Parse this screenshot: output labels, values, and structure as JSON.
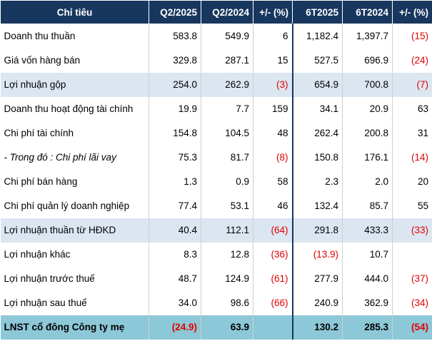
{
  "columns": [
    "Chỉ tiêu",
    "Q2/2025",
    "Q2/2024",
    "+/- (%)",
    "6T2025",
    "6T2024",
    "+/- (%)"
  ],
  "rows": [
    {
      "label": "Doanh thu thuần",
      "style": "",
      "cells": [
        {
          "v": "583.8"
        },
        {
          "v": "549.9"
        },
        {
          "v": "6"
        },
        {
          "v": "1,182.4"
        },
        {
          "v": "1,397.7"
        },
        {
          "v": "(15)",
          "neg": true
        }
      ]
    },
    {
      "label": "Giá vốn hàng bán",
      "style": "",
      "cells": [
        {
          "v": "329.8"
        },
        {
          "v": "287.1"
        },
        {
          "v": "15"
        },
        {
          "v": "527.5"
        },
        {
          "v": "696.9"
        },
        {
          "v": "(24)",
          "neg": true
        }
      ]
    },
    {
      "label": "Lợi nhuận gộp",
      "style": "shaded",
      "cells": [
        {
          "v": "254.0"
        },
        {
          "v": "262.9"
        },
        {
          "v": "(3)",
          "neg": true
        },
        {
          "v": "654.9"
        },
        {
          "v": "700.8"
        },
        {
          "v": "(7)",
          "neg": true
        }
      ]
    },
    {
      "label": "Doanh thu hoạt động tài chính",
      "style": "",
      "cells": [
        {
          "v": "19.9"
        },
        {
          "v": "7.7"
        },
        {
          "v": "159"
        },
        {
          "v": "34.1"
        },
        {
          "v": "20.9"
        },
        {
          "v": "63"
        }
      ]
    },
    {
      "label": "Chi phí tài chính",
      "style": "",
      "cells": [
        {
          "v": "154.8"
        },
        {
          "v": "104.5"
        },
        {
          "v": "48"
        },
        {
          "v": "262.4"
        },
        {
          "v": "200.8"
        },
        {
          "v": "31"
        }
      ]
    },
    {
      "label": "- Trong đó : Chi phí lãi vay",
      "style": "italic",
      "cells": [
        {
          "v": "75.3"
        },
        {
          "v": "81.7"
        },
        {
          "v": "(8)",
          "neg": true
        },
        {
          "v": "150.8"
        },
        {
          "v": "176.1"
        },
        {
          "v": "(14)",
          "neg": true
        }
      ]
    },
    {
      "label": "Chi phí bán hàng",
      "style": "",
      "cells": [
        {
          "v": "1.3"
        },
        {
          "v": "0.9"
        },
        {
          "v": "58"
        },
        {
          "v": "2.3"
        },
        {
          "v": "2.0"
        },
        {
          "v": "20"
        }
      ]
    },
    {
      "label": "Chi phí quản lý doanh nghiệp",
      "style": "",
      "cells": [
        {
          "v": "77.4"
        },
        {
          "v": "53.1"
        },
        {
          "v": "46"
        },
        {
          "v": "132.4"
        },
        {
          "v": "85.7"
        },
        {
          "v": "55"
        }
      ]
    },
    {
      "label": "Lợi nhuận thuần từ HĐKD",
      "style": "shaded",
      "cells": [
        {
          "v": "40.4"
        },
        {
          "v": "112.1"
        },
        {
          "v": "(64)",
          "neg": true
        },
        {
          "v": "291.8"
        },
        {
          "v": "433.3"
        },
        {
          "v": "(33)",
          "neg": true
        }
      ]
    },
    {
      "label": "Lợi nhuận khác",
      "style": "",
      "cells": [
        {
          "v": "8.3"
        },
        {
          "v": "12.8"
        },
        {
          "v": "(36)",
          "neg": true
        },
        {
          "v": "(13.9)",
          "neg": true
        },
        {
          "v": "10.7"
        },
        {
          "v": ""
        }
      ]
    },
    {
      "label": "Lợi nhuận trước thuế",
      "style": "",
      "cells": [
        {
          "v": "48.7"
        },
        {
          "v": "124.9"
        },
        {
          "v": "(61)",
          "neg": true
        },
        {
          "v": "277.9"
        },
        {
          "v": "444.0"
        },
        {
          "v": "(37)",
          "neg": true
        }
      ]
    },
    {
      "label": "Lợi nhuận sau thuế",
      "style": "",
      "cells": [
        {
          "v": "34.0"
        },
        {
          "v": "98.6"
        },
        {
          "v": "(66)",
          "neg": true
        },
        {
          "v": "240.9"
        },
        {
          "v": "362.9"
        },
        {
          "v": "(34)",
          "neg": true
        }
      ]
    },
    {
      "label": "LNST cổ đông Công ty mẹ",
      "style": "total",
      "cells": [
        {
          "v": "(24.9)",
          "neg": true
        },
        {
          "v": "63.9"
        },
        {
          "v": ""
        },
        {
          "v": "130.2"
        },
        {
          "v": "285.3"
        },
        {
          "v": "(54)",
          "neg": true
        }
      ]
    }
  ]
}
